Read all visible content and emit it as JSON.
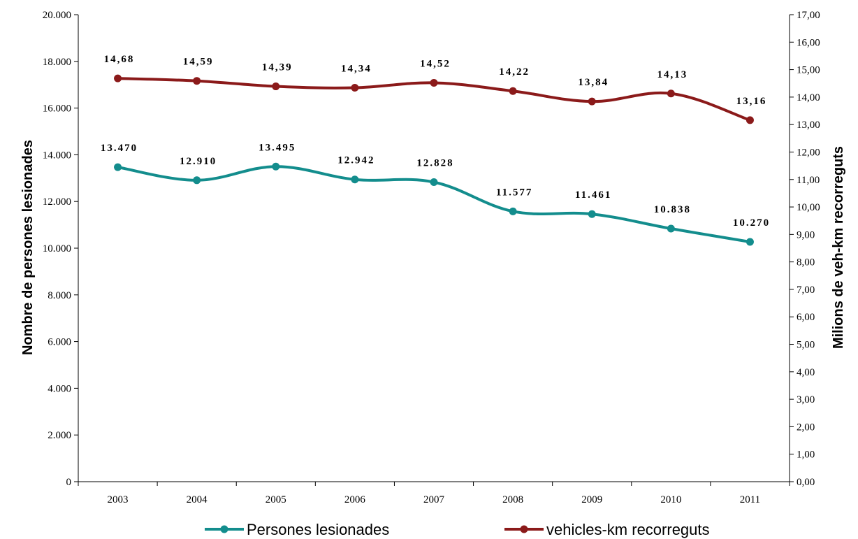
{
  "chart_data": {
    "type": "line",
    "title": "",
    "categories": [
      "2003",
      "2004",
      "2005",
      "2006",
      "2007",
      "2008",
      "2009",
      "2010",
      "2011"
    ],
    "left_axis": {
      "label": "Nombre de persones lesionades",
      "min": 0,
      "max": 20000,
      "ticks": [
        0,
        2000,
        4000,
        6000,
        8000,
        10000,
        12000,
        14000,
        16000,
        18000,
        20000
      ],
      "tick_labels": [
        "0",
        "2.000",
        "4.000",
        "6.000",
        "8.000",
        "10.000",
        "12.000",
        "14.000",
        "16.000",
        "18.000",
        "20.000"
      ]
    },
    "right_axis": {
      "label": "Milions de veh-km recorreguts",
      "min": 0,
      "max": 17,
      "ticks": [
        0,
        1,
        2,
        3,
        4,
        5,
        6,
        7,
        8,
        9,
        10,
        11,
        12,
        13,
        14,
        15,
        16,
        17
      ],
      "tick_labels": [
        "0,00",
        "1,00",
        "2,00",
        "3,00",
        "4,00",
        "5,00",
        "6,00",
        "7,00",
        "8,00",
        "9,00",
        "10,00",
        "11,00",
        "12,00",
        "13,00",
        "14,00",
        "15,00",
        "16,00",
        "17,00"
      ]
    },
    "series": [
      {
        "name": "Persones lesionades",
        "axis": "left",
        "color": "#138D8D",
        "values": [
          13470,
          12910,
          13495,
          12942,
          12828,
          11577,
          11461,
          10838,
          10270
        ],
        "labels": [
          "13.470",
          "12.910",
          "13.495",
          "12.942",
          "12.828",
          "11.577",
          "11.461",
          "10.838",
          "10.270"
        ]
      },
      {
        "name": "vehicles-km recorreguts",
        "axis": "right",
        "color": "#8B1A1A",
        "values": [
          14.68,
          14.59,
          14.39,
          14.34,
          14.52,
          14.22,
          13.84,
          14.13,
          13.16
        ],
        "labels": [
          "14,68",
          "14,59",
          "14,39",
          "14,34",
          "14,52",
          "14,22",
          "13,84",
          "14,13",
          "13,16"
        ]
      }
    ],
    "legend": {
      "position": "bottom"
    },
    "grid": false
  }
}
